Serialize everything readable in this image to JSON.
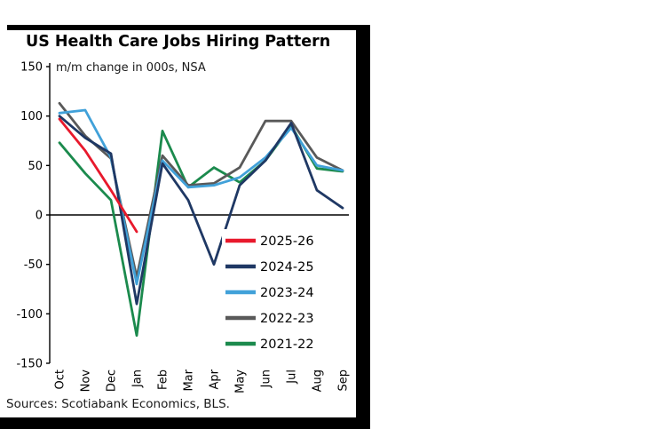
{
  "chart_data": {
    "type": "line",
    "title": "US Health Care Jobs Hiring Pattern",
    "subtitle": "m/m change in 000s, NSA",
    "sources": "Sources: Scotiabank Economics, BLS.",
    "categories": [
      "Oct",
      "Nov",
      "Dec",
      "Jan",
      "Feb",
      "Mar",
      "Apr",
      "May",
      "Jun",
      "Jul",
      "Aug",
      "Sep"
    ],
    "ylim": [
      -150,
      150
    ],
    "ytick_interval": 50,
    "grid": false,
    "legend_position": "inside-bottom-right",
    "axis_color": "#000000",
    "background_color": "#ffffff",
    "series": [
      {
        "name": "2025-26",
        "color": "#e8192c",
        "values": [
          97,
          65,
          25,
          -17,
          null,
          null,
          null,
          null,
          null,
          null,
          null,
          null
        ]
      },
      {
        "name": "2024-25",
        "color": "#1f3864",
        "values": [
          100,
          78,
          62,
          -90,
          52,
          15,
          -50,
          30,
          55,
          93,
          25,
          7
        ]
      },
      {
        "name": "2023-24",
        "color": "#41a1d9",
        "values": [
          103,
          106,
          58,
          -70,
          55,
          28,
          30,
          38,
          58,
          88,
          50,
          45
        ]
      },
      {
        "name": "2022-23",
        "color": "#595959",
        "values": [
          113,
          80,
          57,
          -63,
          60,
          30,
          32,
          48,
          95,
          95,
          58,
          45
        ]
      },
      {
        "name": "2021-22",
        "color": "#1b8a4d",
        "values": [
          73,
          42,
          15,
          -122,
          85,
          28,
          48,
          33,
          55,
          90,
          47,
          44
        ]
      }
    ]
  }
}
